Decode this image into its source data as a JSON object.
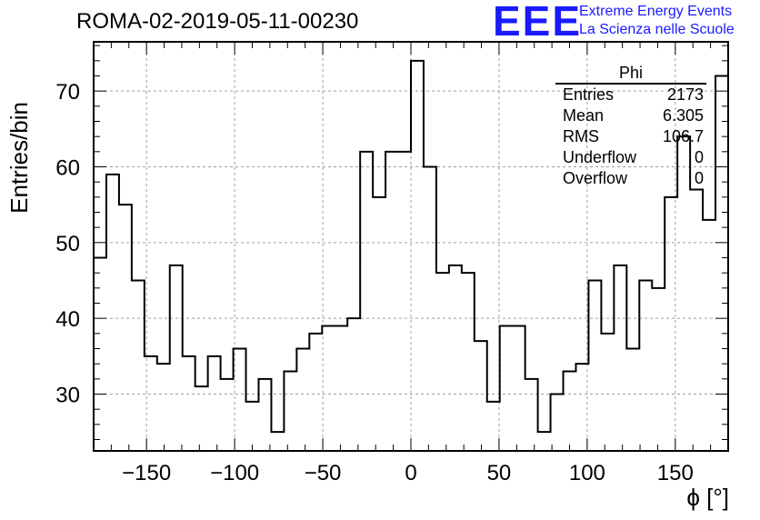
{
  "header": {
    "title": "ROMA-02-2019-05-11-00230",
    "logo_text": "EEE",
    "logo_line1": "Extreme Energy Events",
    "logo_line2": "La Scienza nelle Scuole"
  },
  "colors": {
    "logo": "#1a1aff",
    "line": "#000000",
    "grid": "#a0a0a0"
  },
  "stats": {
    "name": "Phi",
    "rows": [
      {
        "label": "Entries",
        "value": "2173"
      },
      {
        "label": "Mean",
        "value": "6.305"
      },
      {
        "label": "RMS",
        "value": "106.7"
      },
      {
        "label": "Underflow",
        "value": "0"
      },
      {
        "label": "Overflow",
        "value": "0"
      }
    ]
  },
  "chart_data": {
    "type": "histogram",
    "xlabel": "ϕ [°]",
    "ylabel": "Entries/bin",
    "xlim": [
      -180,
      180
    ],
    "ylim": [
      22.5,
      76.5
    ],
    "bin_width": 7.2,
    "bin_low_edges": [
      -180,
      -172.8,
      -165.6,
      -158.4,
      -151.2,
      -144,
      -136.8,
      -129.6,
      -122.4,
      -115.2,
      -108,
      -100.8,
      -93.6,
      -86.4,
      -79.2,
      -72,
      -64.8,
      -57.6,
      -50.4,
      -43.2,
      -36,
      -28.8,
      -21.6,
      -14.4,
      -7.2,
      0,
      7.2,
      14.4,
      21.6,
      28.8,
      36,
      43.2,
      50.4,
      57.6,
      64.8,
      72,
      79.2,
      86.4,
      93.6,
      100.8,
      108,
      115.2,
      122.4,
      129.6,
      136.8,
      144,
      151.2,
      158.4,
      165.6,
      172.8
    ],
    "values": [
      48,
      59,
      55,
      45,
      35,
      34,
      47,
      35,
      31,
      35,
      32,
      36,
      29,
      32,
      25,
      33,
      36,
      38,
      39,
      39,
      40,
      62,
      56,
      62,
      62,
      74,
      60,
      46,
      47,
      46,
      37,
      29,
      39,
      39,
      32,
      25,
      30,
      33,
      34,
      45,
      38,
      47,
      36,
      45,
      44,
      56,
      64,
      57,
      53,
      72
    ],
    "x_ticks": [
      -150,
      -100,
      -50,
      0,
      50,
      100,
      150
    ],
    "x_tick_labels": [
      "−150",
      "−100",
      "−50",
      "0",
      "50",
      "100",
      "150"
    ],
    "y_ticks": [
      30,
      40,
      50,
      60,
      70
    ],
    "y_tick_labels": [
      "30",
      "40",
      "50",
      "60",
      "70"
    ],
    "grid": true
  }
}
